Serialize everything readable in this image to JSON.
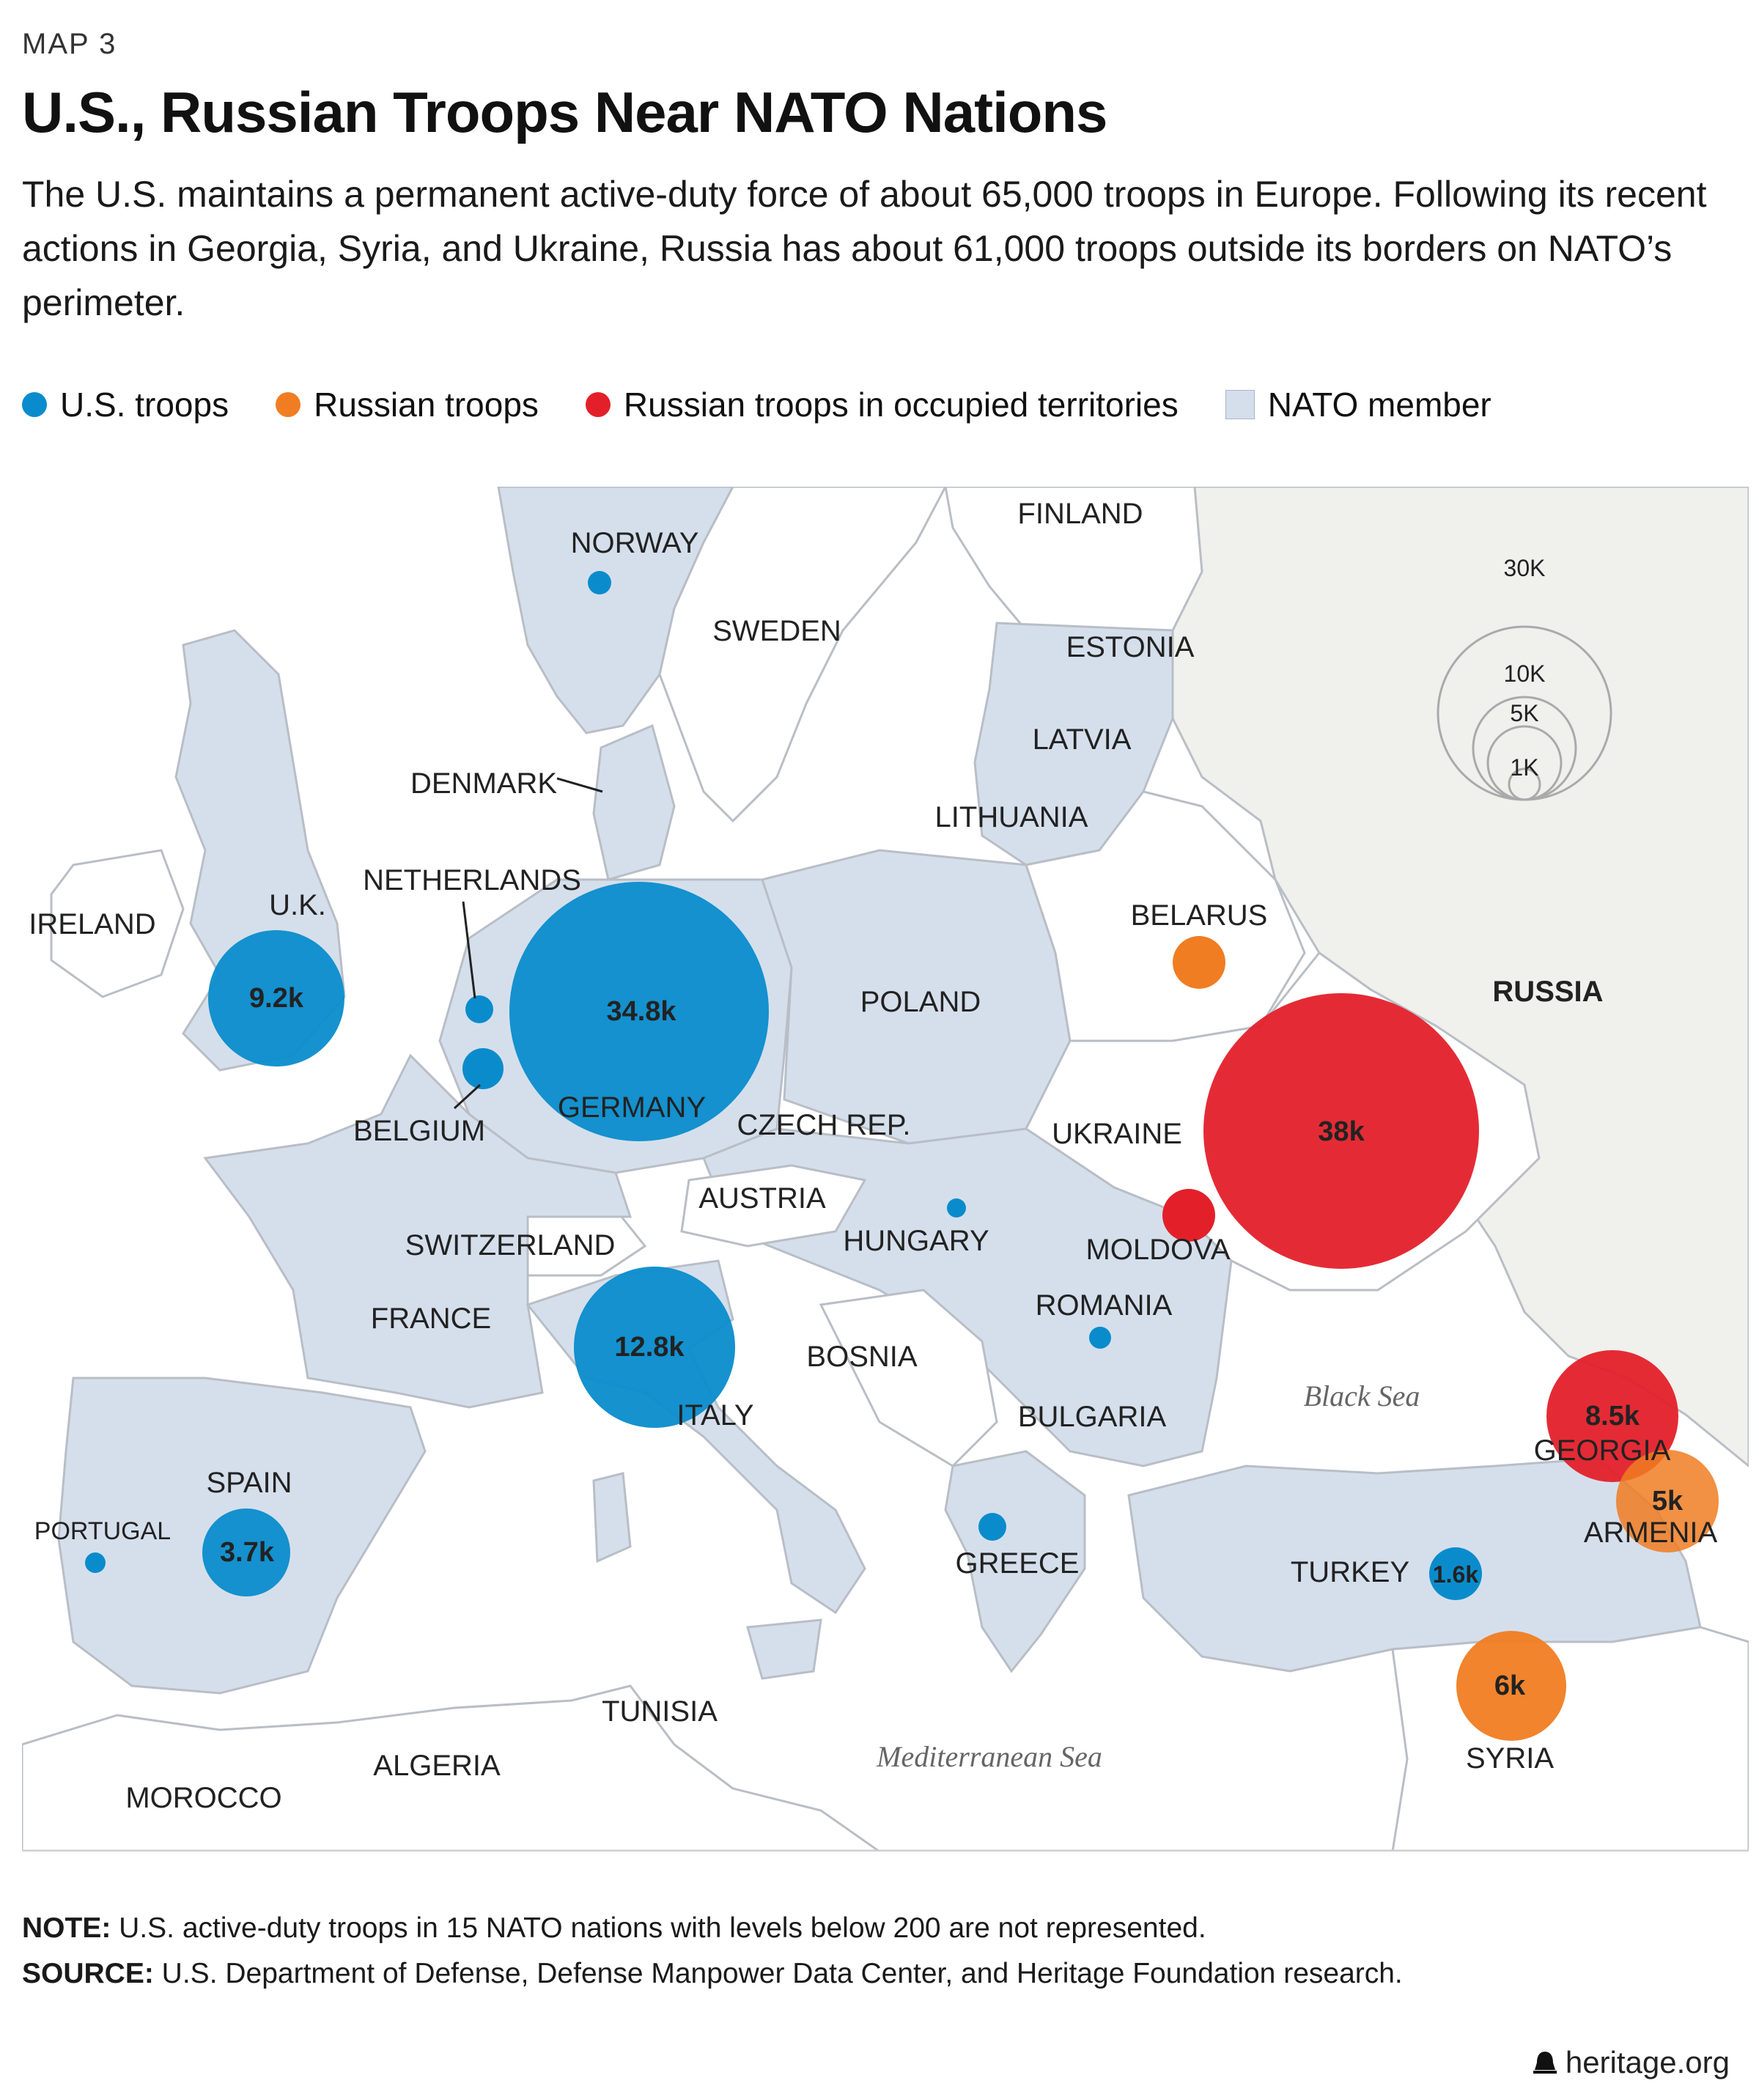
{
  "header": {
    "kicker": "MAP 3",
    "title": "U.S., Russian Troops Near NATO Nations",
    "subtitle": "The U.S. maintains a permanent active-duty force of about 65,000 troops in Europe. Following its recent actions in Georgia, Syria, and Ukraine, Russia has about 61,000 troops outside its borders on NATO’s perimeter."
  },
  "legend": {
    "us": "U.S. troops",
    "russian": "Russian troops",
    "occupied": "Russian troops in occupied territories",
    "nato": "NATO member"
  },
  "colors": {
    "us": "#0a8ccc",
    "russian": "#f07d22",
    "occupied": "#e3202a",
    "nato": "#d5dfec",
    "nonmember": "#ffffff",
    "russia": "#f0f0ec",
    "border": "#b9bec6"
  },
  "map": {
    "countries": {
      "norway": "NORWAY",
      "sweden": "SWEDEN",
      "finland": "FINLAND",
      "estonia": "ESTONIA",
      "latvia": "LATVIA",
      "lithuania": "LITHUANIA",
      "denmark": "DENMARK",
      "ireland": "IRELAND",
      "uk": "U.K.",
      "netherlands": "NETHERLANDS",
      "belgium": "BELGIUM",
      "germany": "GERMANY",
      "poland": "POLAND",
      "belarus": "BELARUS",
      "russia": "RUSSIA",
      "ukraine": "UKRAINE",
      "czech": "CZECH REP.",
      "austria": "AUSTRIA",
      "switzerland": "SWITZERLAND",
      "hungary": "HUNGARY",
      "moldova": "MOLDOVA",
      "france": "FRANCE",
      "romania": "ROMANIA",
      "bosnia": "BOSNIA",
      "italy": "ITALY",
      "bulgaria": "BULGARIA",
      "spain": "SPAIN",
      "portugal": "PORTUGAL",
      "greece": "GREECE",
      "turkey": "TURKEY",
      "georgia": "GEORGIA",
      "armenia": "ARMENIA",
      "syria": "SYRIA",
      "tunisia": "TUNISIA",
      "algeria": "ALGERIA",
      "morocco": "MOROCCO"
    },
    "seas": {
      "black": "Black Sea",
      "med": "Mediterranean Sea"
    },
    "scale": {
      "s30": "30K",
      "s10": "10K",
      "s5": "5K",
      "s1": "1K"
    },
    "bubbles": {
      "uk": "9.2k",
      "germany": "34.8k",
      "italy": "12.8k",
      "spain": "3.7k",
      "turkey": "1.6k",
      "ukraine": "38k",
      "georgia": "8.5k",
      "armenia": "5k",
      "syria": "6k"
    }
  },
  "footer": {
    "note_label": "NOTE:",
    "note": " U.S. active-duty troops in 15 NATO nations with levels below 200 are not represented.",
    "source_label": "SOURCE:",
    "source": " U.S. Department of Defense, Defense Manpower Data Center, and Heritage Foundation research.",
    "brand": "heritage.org"
  }
}
